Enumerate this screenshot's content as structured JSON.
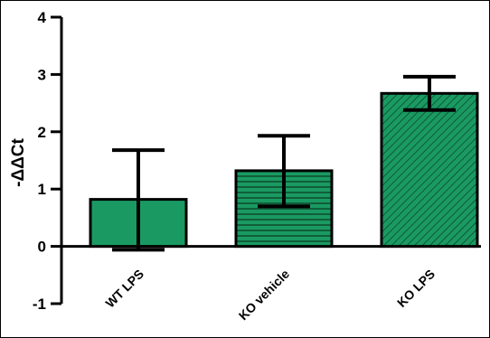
{
  "chart_data": {
    "type": "bar",
    "title": "",
    "xlabel": "",
    "ylabel": "-ΔΔCt",
    "ylim": [
      -1,
      4
    ],
    "yticks": [
      "-1",
      "0",
      "1",
      "2",
      "3",
      "4"
    ],
    "grid": false,
    "categories": [
      "WT LPS",
      "KO vehicle",
      "KO LPS"
    ],
    "values": [
      0.82,
      1.32,
      2.67
    ],
    "error_upper": [
      1.68,
      1.93,
      2.96
    ],
    "error_lower": [
      -0.06,
      0.7,
      2.38
    ],
    "fills": [
      "solid",
      "horizontal-lines",
      "diagonal-lines"
    ],
    "bar_color": "#1a9a62",
    "stroke_color": "#000000"
  }
}
